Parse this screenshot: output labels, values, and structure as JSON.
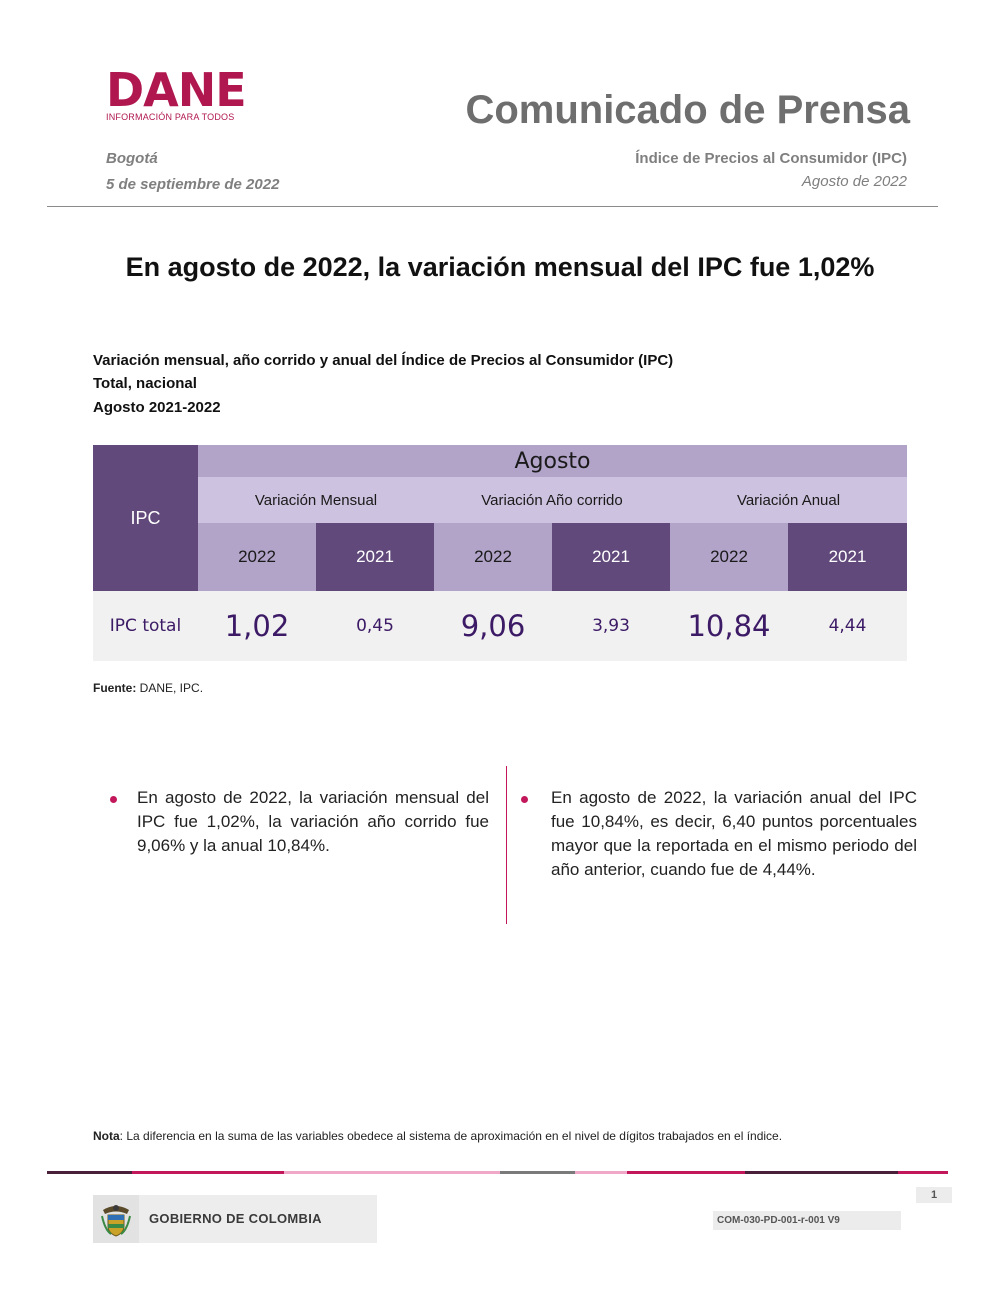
{
  "header": {
    "logo_text": "DANE",
    "logo_tagline": "INFORMACIÓN PARA TODOS",
    "title": "Comunicado de Prensa",
    "city": "Bogotá",
    "date": "5 de septiembre de 2022",
    "report_name": "Índice de Precios al Consumidor (IPC)",
    "report_period": "Agosto de 2022"
  },
  "headline": "En agosto de 2022, la variación mensual del IPC fue 1,02%",
  "table_caption": {
    "line1": "Variación mensual, año corrido y anual del Índice de Precios al Consumidor (IPC)",
    "line2": "Total, nacional",
    "line3": "Agosto 2021-2022"
  },
  "table": {
    "row_header": "IPC",
    "month_header": "Agosto",
    "groups": [
      "Variación Mensual",
      "Variación Año corrido",
      "Variación Anual"
    ],
    "years": [
      "2022",
      "2021",
      "2022",
      "2021",
      "2022",
      "2021"
    ],
    "row_label": "IPC total",
    "values": [
      "1,02",
      "0,45",
      "9,06",
      "3,93",
      "10,84",
      "4,44"
    ]
  },
  "source": {
    "label": "Fuente:",
    "text": " DANE, IPC."
  },
  "bullets": [
    "En agosto de 2022, la variación mensual del IPC fue 1,02%, la variación año corrido fue 9,06% y la anual 10,84%.",
    "En agosto de 2022, la variación anual del IPC fue 10,84%, es decir, 6,40 puntos porcentuales mayor que la reportada en el mismo periodo del año anterior, cuando fue de 4,44%."
  ],
  "note": {
    "label": "Nota",
    "text": ": La diferencia en la suma de las variables obedece al sistema de aproximación en el nivel de dígitos trabajados en el índice."
  },
  "footer": {
    "page_number": "1",
    "government": "GOBIERNO DE COLOMBIA",
    "doc_code": "COM-030-PD-001-r-001 V9",
    "shield_icon": "colombia-coat-of-arms-icon"
  },
  "colors": {
    "brand": "#b0174f",
    "table_dark": "#614a7b",
    "table_mid": "#b2a3c9",
    "table_light": "#cdc2df",
    "value_text": "#3c1a66",
    "accent": "#c2185b"
  }
}
